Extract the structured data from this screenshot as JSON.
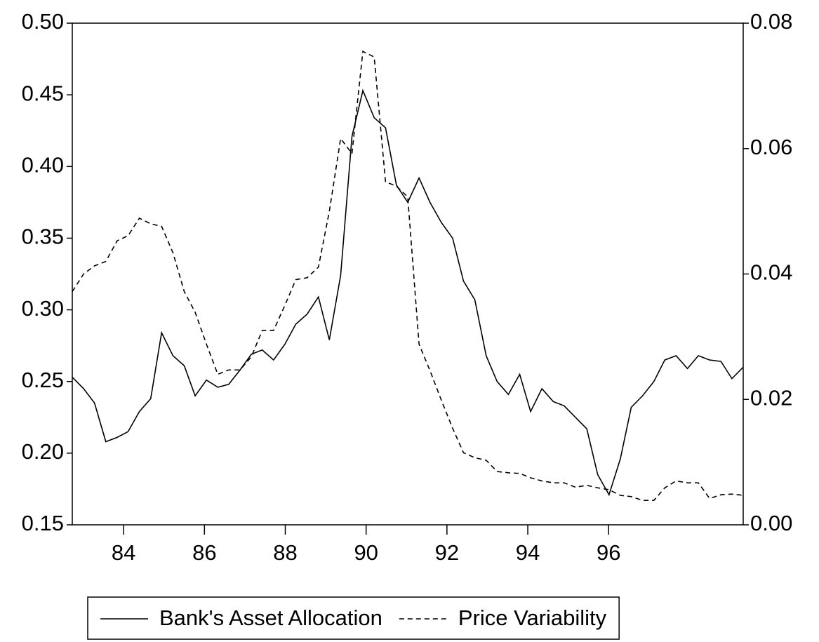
{
  "chart_data": {
    "type": "line",
    "x": [
      82.73,
      83.01,
      83.28,
      83.56,
      83.84,
      84.11,
      84.39,
      84.67,
      84.94,
      85.22,
      85.5,
      85.77,
      86.05,
      86.33,
      86.6,
      86.88,
      87.16,
      87.43,
      87.71,
      87.99,
      88.26,
      88.54,
      88.82,
      89.09,
      89.37,
      89.65,
      89.92,
      90.2,
      90.48,
      90.75,
      91.03,
      91.31,
      91.58,
      91.86,
      92.14,
      92.41,
      92.69,
      92.97,
      93.24,
      93.52,
      93.8,
      94.07,
      94.35,
      94.63,
      94.9,
      95.18,
      95.46,
      95.73,
      96.01,
      96.29,
      96.56,
      96.84,
      97.12,
      97.39,
      97.67,
      97.95,
      98.22,
      98.5,
      98.78,
      99.05,
      99.33
    ],
    "series": [
      {
        "name": "Bank's Asset Allocation",
        "color": "#000000",
        "dash": "solid",
        "axis": "y",
        "values": [
          0.253,
          0.245,
          0.235,
          0.208,
          0.211,
          0.215,
          0.229,
          0.238,
          0.284,
          0.268,
          0.261,
          0.24,
          0.251,
          0.246,
          0.248,
          0.258,
          0.269,
          0.272,
          0.265,
          0.276,
          0.29,
          0.297,
          0.309,
          0.279,
          0.324,
          0.421,
          0.453,
          0.434,
          0.427,
          0.387,
          0.375,
          0.392,
          0.375,
          0.361,
          0.35,
          0.32,
          0.307,
          0.268,
          0.25,
          0.241,
          0.255,
          0.229,
          0.245,
          0.236,
          0.233,
          0.225,
          0.217,
          0.185,
          0.171,
          0.196,
          0.232,
          0.24,
          0.25,
          0.265,
          0.268,
          0.259,
          0.268,
          0.265,
          0.264,
          0.252,
          0.26
        ]
      },
      {
        "name": "Price Variability",
        "color": "#000000",
        "dash": "dashed",
        "axis": "y2",
        "values": [
          0.0372,
          0.04,
          0.0413,
          0.042,
          0.0453,
          0.0461,
          0.0489,
          0.048,
          0.0476,
          0.0434,
          0.0372,
          0.0339,
          0.0288,
          0.024,
          0.0247,
          0.0247,
          0.0268,
          0.031,
          0.031,
          0.035,
          0.0391,
          0.0394,
          0.0411,
          0.05,
          0.0616,
          0.0592,
          0.0755,
          0.0746,
          0.0547,
          0.054,
          0.0523,
          0.0288,
          0.0246,
          0.0199,
          0.0154,
          0.0115,
          0.0107,
          0.0103,
          0.0085,
          0.0083,
          0.0082,
          0.0075,
          0.007,
          0.0067,
          0.0067,
          0.006,
          0.0063,
          0.0059,
          0.0056,
          0.0047,
          0.0045,
          0.0039,
          0.0039,
          0.0059,
          0.007,
          0.0067,
          0.0067,
          0.0042,
          0.0048,
          0.0049,
          0.0047
        ]
      }
    ],
    "xlim": [
      82.73,
      99.33
    ],
    "xticks": [
      84,
      86,
      88,
      90,
      92,
      94,
      96
    ],
    "ylim": [
      0.15,
      0.5
    ],
    "yticks": [
      {
        "value": 0.15,
        "label": "0.15"
      },
      {
        "value": 0.2,
        "label": "0.20"
      },
      {
        "value": 0.25,
        "label": "0.25"
      },
      {
        "value": 0.3,
        "label": "0.30"
      },
      {
        "value": 0.35,
        "label": "0.35"
      },
      {
        "value": 0.4,
        "label": "0.40"
      },
      {
        "value": 0.45,
        "label": "0.45"
      },
      {
        "value": 0.5,
        "label": "0.50"
      }
    ],
    "y2lim": [
      0.0,
      0.08
    ],
    "y2ticks": [
      {
        "value": 0.0,
        "label": "0.00"
      },
      {
        "value": 0.02,
        "label": "0.02"
      },
      {
        "value": 0.04,
        "label": "0.04"
      },
      {
        "value": 0.06,
        "label": "0.06"
      },
      {
        "value": 0.08,
        "label": "0.08"
      }
    ],
    "grid": false,
    "legend": "bottom"
  }
}
